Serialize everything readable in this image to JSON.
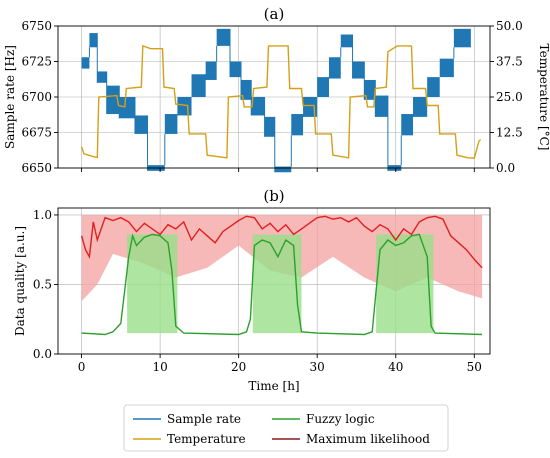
{
  "colors": {
    "sample_rate": "#1f77b4",
    "temperature": "#d4a017",
    "fuzzy": "#2ca02c",
    "fuzzy_fill": "#98df8a",
    "ml": "#e02020",
    "ml_fill": "#f4a0a0",
    "ml_legend": "#8b1a1a"
  },
  "legend": {
    "sample_rate": "Sample rate",
    "temperature": "Temperature",
    "fuzzy": "Fuzzy logic",
    "ml": "Maximum likelihood"
  },
  "chart_data": [
    {
      "type": "line",
      "panel_label": "(a)",
      "xlim": [
        -3,
        52
      ],
      "x_ticks": [
        0,
        10,
        20,
        30,
        40,
        50
      ],
      "ylim": [
        6650,
        6750
      ],
      "ylabel": "Sample rate [Hz]",
      "y_ticks": [
        "6650",
        "6675",
        "6700",
        "6725",
        "6750"
      ],
      "y_tick_values": [
        6650,
        6675,
        6700,
        6725,
        6750
      ],
      "y2lim": [
        0,
        50
      ],
      "y2label": "Temperature [°C]",
      "y2_ticks": [
        "0.0",
        "12.5",
        "25.0",
        "37.5",
        "50.0"
      ],
      "y2_tick_values": [
        0,
        12.5,
        25,
        37.5,
        50
      ],
      "grid": true,
      "series": [
        {
          "key": "sample_rate",
          "segments": [
            [
              0,
              1,
              6728,
              6720
            ],
            [
              1,
              2,
              6745,
              6735
            ],
            [
              2,
              3.2,
              6718,
              6710
            ],
            [
              3.2,
              4.8,
              6708,
              6688
            ],
            [
              4.8,
              6.8,
              6700,
              6685
            ],
            [
              6.8,
              8.4,
              6687,
              6674
            ],
            [
              8.4,
              10.6,
              6652,
              6648
            ],
            [
              10.6,
              12.2,
              6688,
              6674
            ],
            [
              12.2,
              14,
              6700,
              6687
            ],
            [
              14,
              15.8,
              6716,
              6700
            ],
            [
              15.8,
              17.2,
              6725,
              6712
            ],
            [
              17.2,
              18.9,
              6748,
              6736
            ],
            [
              18.9,
              20.3,
              6725,
              6714
            ],
            [
              20.3,
              21.6,
              6712,
              6698
            ],
            [
              21.6,
              23.3,
              6700,
              6687
            ],
            [
              23.3,
              24.6,
              6686,
              6672
            ],
            [
              24.6,
              26.7,
              6651,
              6647
            ],
            [
              26.7,
              28.2,
              6688,
              6673
            ],
            [
              28.2,
              30,
              6700,
              6686
            ],
            [
              30,
              31.5,
              6714,
              6700
            ],
            [
              31.5,
              33,
              6728,
              6713
            ],
            [
              33,
              34.5,
              6744,
              6735
            ],
            [
              34.5,
              36,
              6725,
              6713
            ],
            [
              36,
              37.4,
              6712,
              6698
            ],
            [
              37.4,
              39,
              6701,
              6686
            ],
            [
              39,
              40.7,
              6652,
              6648
            ],
            [
              40.7,
              42.2,
              6688,
              6673
            ],
            [
              42.2,
              44,
              6700,
              6686
            ],
            [
              44,
              45.6,
              6714,
              6700
            ],
            [
              45.6,
              47.4,
              6727,
              6714
            ],
            [
              47.4,
              49.5,
              6748,
              6735
            ]
          ]
        },
        {
          "key": "temperature",
          "points": [
            [
              0,
              7.5
            ],
            [
              0.3,
              5
            ],
            [
              1.5,
              4
            ],
            [
              2,
              3.7
            ],
            [
              2.2,
              25
            ],
            [
              4.5,
              25.5
            ],
            [
              4.7,
              22
            ],
            [
              5.5,
              21.5
            ],
            [
              5.7,
              28
            ],
            [
              7.6,
              28.5
            ],
            [
              7.8,
              43
            ],
            [
              8.8,
              42
            ],
            [
              10.3,
              42
            ],
            [
              10.5,
              28.5
            ],
            [
              11.8,
              28
            ],
            [
              12,
              22.5
            ],
            [
              13.5,
              22
            ],
            [
              13.7,
              12
            ],
            [
              15.8,
              12
            ],
            [
              16,
              4.5
            ],
            [
              18.5,
              3.6
            ],
            [
              18.7,
              25
            ],
            [
              20.5,
              25.5
            ],
            [
              20.7,
              21.5
            ],
            [
              21.7,
              21.5
            ],
            [
              21.9,
              28
            ],
            [
              23.6,
              28.5
            ],
            [
              23.8,
              43
            ],
            [
              26.3,
              43
            ],
            [
              26.5,
              28
            ],
            [
              28,
              28
            ],
            [
              28.2,
              22
            ],
            [
              29.6,
              22
            ],
            [
              29.8,
              12
            ],
            [
              31.8,
              12
            ],
            [
              32,
              4.5
            ],
            [
              34,
              3.6
            ],
            [
              34.2,
              25
            ],
            [
              36.2,
              25.5
            ],
            [
              36.4,
              21.5
            ],
            [
              37.2,
              21.5
            ],
            [
              37.4,
              28
            ],
            [
              38.8,
              28.5
            ],
            [
              39,
              41
            ],
            [
              40.2,
              43
            ],
            [
              42,
              43
            ],
            [
              42.2,
              28
            ],
            [
              43.8,
              28
            ],
            [
              44,
              22
            ],
            [
              45.4,
              22
            ],
            [
              45.6,
              12
            ],
            [
              47.6,
              12
            ],
            [
              47.8,
              4.5
            ],
            [
              49.2,
              3.6
            ],
            [
              50,
              3.5
            ],
            [
              50.6,
              9.5
            ],
            [
              50.8,
              10
            ]
          ]
        }
      ]
    },
    {
      "type": "line",
      "panel_label": "(b)",
      "xlim": [
        -3,
        52
      ],
      "xlabel": "Time [h]",
      "x_ticks": [
        "0",
        "10",
        "20",
        "30",
        "40",
        "50"
      ],
      "x_tick_values": [
        0,
        10,
        20,
        30,
        40,
        50
      ],
      "ylim": [
        0,
        1.05
      ],
      "ylabel": "Data quality [a.u.]",
      "y_ticks": [
        "0.0",
        "0.5",
        "1.0"
      ],
      "y_tick_values": [
        0,
        0.5,
        1
      ],
      "grid": true,
      "series": [
        {
          "key": "ml",
          "band": [
            0,
            51
          ],
          "band_low": [
            [
              0,
              0.38
            ],
            [
              2,
              0.5
            ],
            [
              4,
              0.72
            ],
            [
              8,
              0.65
            ],
            [
              12,
              0.55
            ],
            [
              16,
              0.62
            ],
            [
              20,
              0.78
            ],
            [
              24,
              0.6
            ],
            [
              28,
              0.55
            ],
            [
              32,
              0.7
            ],
            [
              36,
              0.55
            ],
            [
              40,
              0.45
            ],
            [
              44,
              0.55
            ],
            [
              48,
              0.45
            ],
            [
              51,
              0.4
            ]
          ],
          "points": [
            [
              0,
              0.85
            ],
            [
              0.5,
              0.75
            ],
            [
              1,
              0.7
            ],
            [
              1.5,
              0.95
            ],
            [
              2,
              0.82
            ],
            [
              3,
              0.98
            ],
            [
              4,
              0.96
            ],
            [
              5,
              0.98
            ],
            [
              6,
              0.95
            ],
            [
              7,
              0.88
            ],
            [
              8,
              0.94
            ],
            [
              9,
              0.9
            ],
            [
              10,
              0.86
            ],
            [
              11,
              0.93
            ],
            [
              12,
              0.9
            ],
            [
              13,
              0.95
            ],
            [
              14,
              0.82
            ],
            [
              15,
              0.9
            ],
            [
              16,
              0.85
            ],
            [
              17,
              0.8
            ],
            [
              18,
              0.88
            ],
            [
              19,
              0.92
            ],
            [
              20,
              0.96
            ],
            [
              21,
              0.99
            ],
            [
              22,
              0.98
            ],
            [
              23,
              0.9
            ],
            [
              24,
              0.94
            ],
            [
              25,
              0.88
            ],
            [
              26,
              0.93
            ],
            [
              27,
              0.86
            ],
            [
              28,
              0.9
            ],
            [
              29,
              0.94
            ],
            [
              30,
              0.98
            ],
            [
              31,
              0.99
            ],
            [
              32,
              0.97
            ],
            [
              33,
              0.98
            ],
            [
              34,
              0.95
            ],
            [
              35,
              0.98
            ],
            [
              36,
              0.92
            ],
            [
              37,
              0.88
            ],
            [
              38,
              0.93
            ],
            [
              39,
              0.9
            ],
            [
              40,
              0.82
            ],
            [
              41,
              0.9
            ],
            [
              42,
              0.86
            ],
            [
              43,
              0.95
            ],
            [
              44,
              0.98
            ],
            [
              45,
              0.99
            ],
            [
              46,
              0.97
            ],
            [
              47,
              0.85
            ],
            [
              48,
              0.8
            ],
            [
              49,
              0.75
            ],
            [
              50,
              0.68
            ],
            [
              51,
              0.62
            ]
          ]
        },
        {
          "key": "fuzzy",
          "points": [
            [
              0,
              0.15
            ],
            [
              3,
              0.14
            ],
            [
              4,
              0.16
            ],
            [
              5,
              0.22
            ],
            [
              6,
              0.7
            ],
            [
              6.5,
              0.85
            ],
            [
              7,
              0.78
            ],
            [
              8,
              0.84
            ],
            [
              9,
              0.86
            ],
            [
              10,
              0.85
            ],
            [
              11,
              0.8
            ],
            [
              11.5,
              0.6
            ],
            [
              12,
              0.2
            ],
            [
              13,
              0.15
            ],
            [
              20,
              0.14
            ],
            [
              21,
              0.16
            ],
            [
              21.5,
              0.25
            ],
            [
              22,
              0.78
            ],
            [
              23,
              0.82
            ],
            [
              24,
              0.8
            ],
            [
              25,
              0.7
            ],
            [
              26,
              0.82
            ],
            [
              27,
              0.78
            ],
            [
              27.5,
              0.35
            ],
            [
              28,
              0.16
            ],
            [
              30,
              0.15
            ],
            [
              36,
              0.14
            ],
            [
              37,
              0.16
            ],
            [
              38,
              0.75
            ],
            [
              39,
              0.82
            ],
            [
              40,
              0.78
            ],
            [
              41,
              0.8
            ],
            [
              42,
              0.85
            ],
            [
              43,
              0.86
            ],
            [
              44,
              0.7
            ],
            [
              44.5,
              0.2
            ],
            [
              45,
              0.15
            ],
            [
              51,
              0.14
            ]
          ],
          "bands": [
            [
              5.8,
              12.2
            ],
            [
              21.8,
              28
            ],
            [
              37.5,
              44.8
            ]
          ]
        }
      ]
    }
  ]
}
